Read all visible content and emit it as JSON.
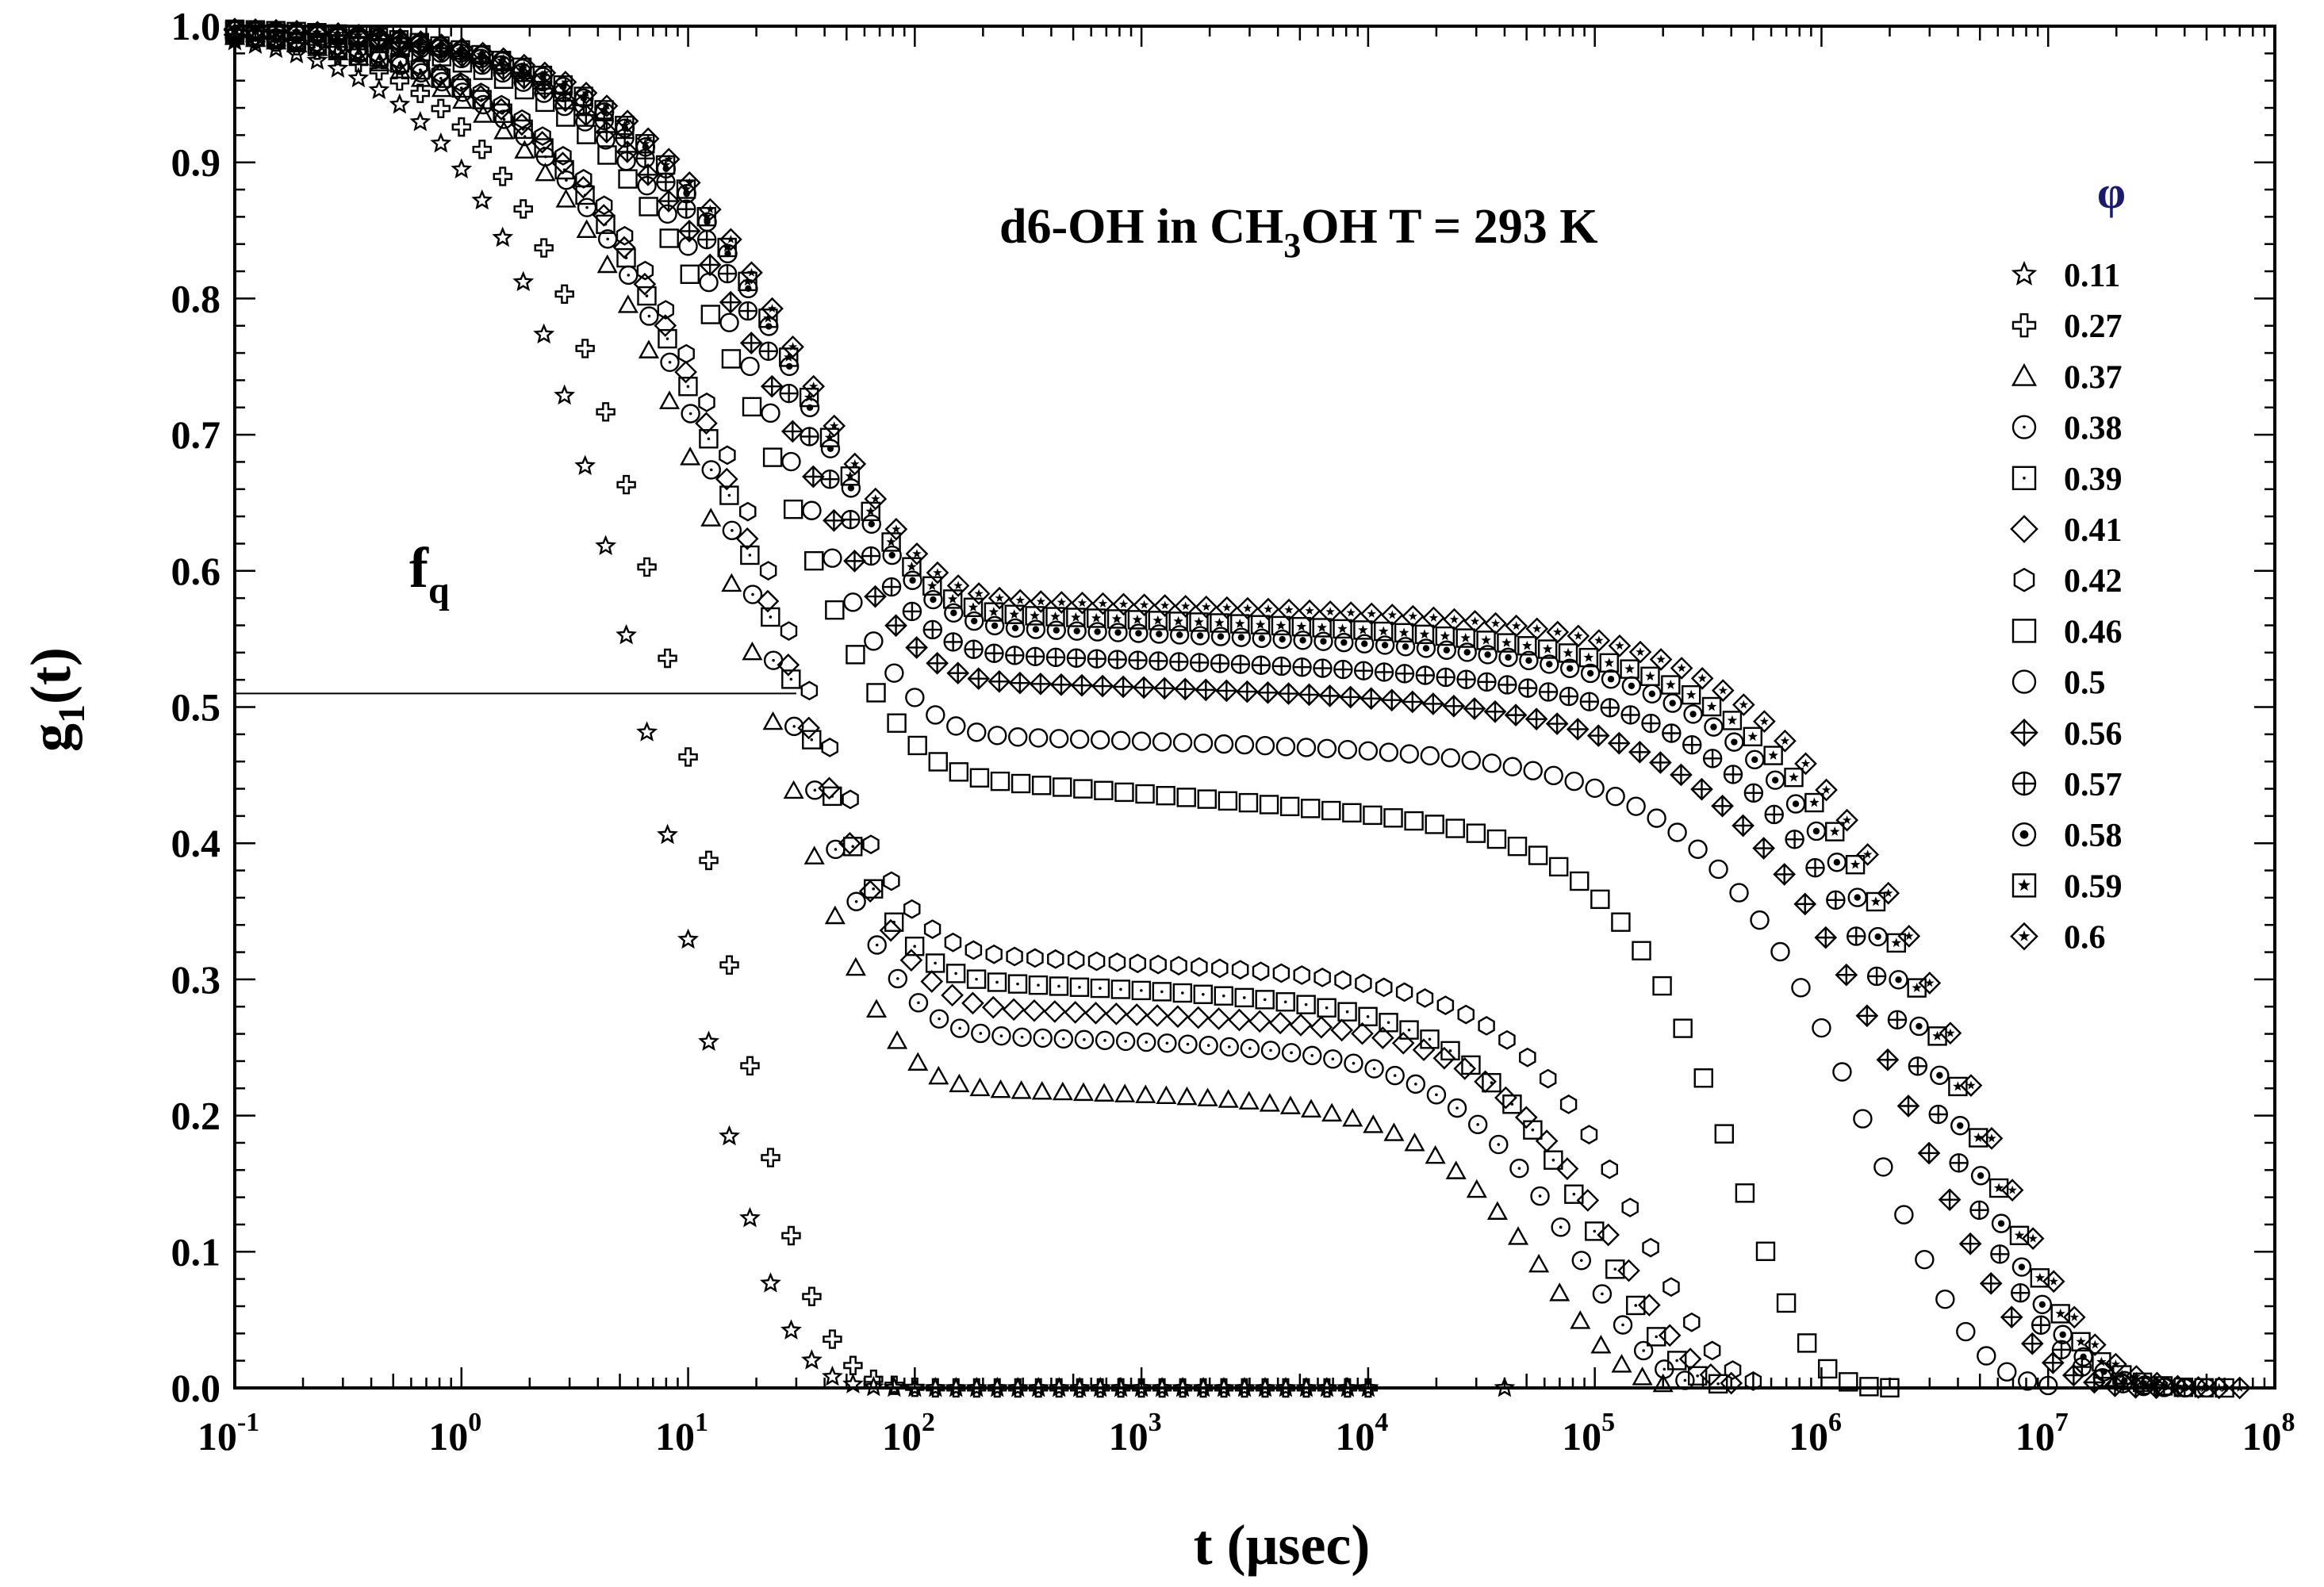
{
  "chart_data": {
    "type": "scatter",
    "title": "d6-OH in CH3OH T = 293 K",
    "title_parts": {
      "before": "d6-OH in CH",
      "subscript": "3",
      "after": "OH T = 293 K"
    },
    "xlabel": "t (μsec)",
    "ylabel": {
      "base": "g",
      "subscript": "1",
      "suffix": "(t)"
    },
    "x_scale": "log",
    "xlim": [
      0.1,
      100000000
    ],
    "ylim": [
      0.0,
      1.0
    ],
    "x_ticks": [
      {
        "value": 0.1,
        "base": "10",
        "exp": "-1"
      },
      {
        "value": 1,
        "base": "10",
        "exp": "0"
      },
      {
        "value": 10,
        "base": "10",
        "exp": "1"
      },
      {
        "value": 100,
        "base": "10",
        "exp": "2"
      },
      {
        "value": 1000,
        "base": "10",
        "exp": "3"
      },
      {
        "value": 10000,
        "base": "10",
        "exp": "4"
      },
      {
        "value": 100000,
        "base": "10",
        "exp": "5"
      },
      {
        "value": 1000000,
        "base": "10",
        "exp": "6"
      },
      {
        "value": 10000000,
        "base": "10",
        "exp": "7"
      },
      {
        "value": 100000000,
        "base": "10",
        "exp": "8"
      }
    ],
    "y_ticks": [
      "0.0",
      "0.1",
      "0.2",
      "0.3",
      "0.4",
      "0.5",
      "0.6",
      "0.7",
      "0.8",
      "0.9",
      "1.0"
    ],
    "y_tick_values": [
      0,
      0.1,
      0.2,
      0.3,
      0.4,
      0.5,
      0.6,
      0.7,
      0.8,
      0.9,
      1.0
    ],
    "legend_title": "φ",
    "legend_position": "right",
    "annotations": [
      {
        "text_base": "f",
        "text_sub": "q",
        "kind": "horizontal-line",
        "y": 0.51,
        "x_start": 0.1,
        "x_end": 30
      }
    ],
    "curve_params_note": "g1(t) = A*exp(-(t/t0)^b) + f*exp(-(t/t1)^b2); params per series",
    "series": [
      {
        "name": "0.11",
        "marker": "star",
        "t_start": 0.1,
        "t_end": 10000,
        "A": 1.0,
        "t0": 9,
        "b": 1.0,
        "f": 0.0,
        "t1": 1,
        "b2": 1,
        "extra_points": [
          [
            40000,
            0.0
          ]
        ]
      },
      {
        "name": "0.27",
        "marker": "plus",
        "t_start": 0.1,
        "t_end": 10000,
        "A": 1.0,
        "t0": 13,
        "b": 1.0,
        "f": 0.0,
        "t1": 1,
        "b2": 1
      },
      {
        "name": "0.37",
        "marker": "triangle",
        "t_start": 0.1,
        "t_end": 200000,
        "A": 0.78,
        "t0": 22,
        "b": 0.85,
        "f": 0.22,
        "t1": 65000,
        "b2": 1.3,
        "slope": 0.018
      },
      {
        "name": "0.38",
        "marker": "circle-dot",
        "t_start": 0.1,
        "t_end": 250000,
        "A": 0.74,
        "t0": 24,
        "b": 0.85,
        "f": 0.26,
        "t1": 90000,
        "b2": 1.3,
        "slope": 0.02
      },
      {
        "name": "0.39",
        "marker": "square-dot",
        "t_start": 0.1,
        "t_end": 350000,
        "A": 0.7,
        "t0": 24,
        "b": 0.85,
        "f": 0.3,
        "t1": 110000,
        "b2": 1.3,
        "slope": 0.025
      },
      {
        "name": "0.41",
        "marker": "diamond",
        "t_start": 0.1,
        "t_end": 400000,
        "A": 0.72,
        "t0": 26,
        "b": 0.85,
        "f": 0.28,
        "t1": 130000,
        "b2": 1.3,
        "slope": 0.02
      },
      {
        "name": "0.42",
        "marker": "hexagon",
        "t_start": 0.1,
        "t_end": 500000,
        "A": 0.68,
        "t0": 26,
        "b": 0.85,
        "f": 0.32,
        "t1": 170000,
        "b2": 1.3,
        "slope": 0.025
      },
      {
        "name": "0.46",
        "marker": "square",
        "t_start": 0.1,
        "t_end": 2000000,
        "A": 0.55,
        "t0": 28,
        "b": 0.9,
        "f": 0.45,
        "t1": 450000,
        "b2": 1.4,
        "slope": 0.03
      },
      {
        "name": "0.5",
        "marker": "circle",
        "t_start": 0.1,
        "t_end": 10000000,
        "A": 0.52,
        "t0": 30,
        "b": 0.9,
        "f": 0.48,
        "t1": 1800000,
        "b2": 1.0,
        "slope": 0.01
      },
      {
        "name": "0.56",
        "marker": "diamond-cross",
        "t_start": 0.1,
        "t_end": 30000000,
        "A": 0.48,
        "t0": 30,
        "b": 0.9,
        "f": 0.52,
        "t1": 2800000,
        "b2": 0.9,
        "slope": 0.01
      },
      {
        "name": "0.57",
        "marker": "circle-cross",
        "t_start": 0.1,
        "t_end": 40000000,
        "A": 0.46,
        "t0": 32,
        "b": 0.9,
        "f": 0.54,
        "t1": 3500000,
        "b2": 0.9,
        "slope": 0.01
      },
      {
        "name": "0.58",
        "marker": "circle-star",
        "t_start": 0.1,
        "t_end": 50000000,
        "A": 0.44,
        "t0": 34,
        "b": 0.9,
        "f": 0.56,
        "t1": 4000000,
        "b2": 0.9,
        "slope": 0.01
      },
      {
        "name": "0.59",
        "marker": "square-star",
        "t_start": 0.1,
        "t_end": 60000000,
        "A": 0.43,
        "t0": 34,
        "b": 0.9,
        "f": 0.57,
        "t1": 4500000,
        "b2": 0.9,
        "slope": 0.01
      },
      {
        "name": "0.6",
        "marker": "diamond-star",
        "t_start": 0.1,
        "t_end": 70000000,
        "A": 0.42,
        "t0": 36,
        "b": 0.9,
        "f": 0.58,
        "t1": 5000000,
        "b2": 0.9,
        "slope": 0.008
      }
    ]
  }
}
